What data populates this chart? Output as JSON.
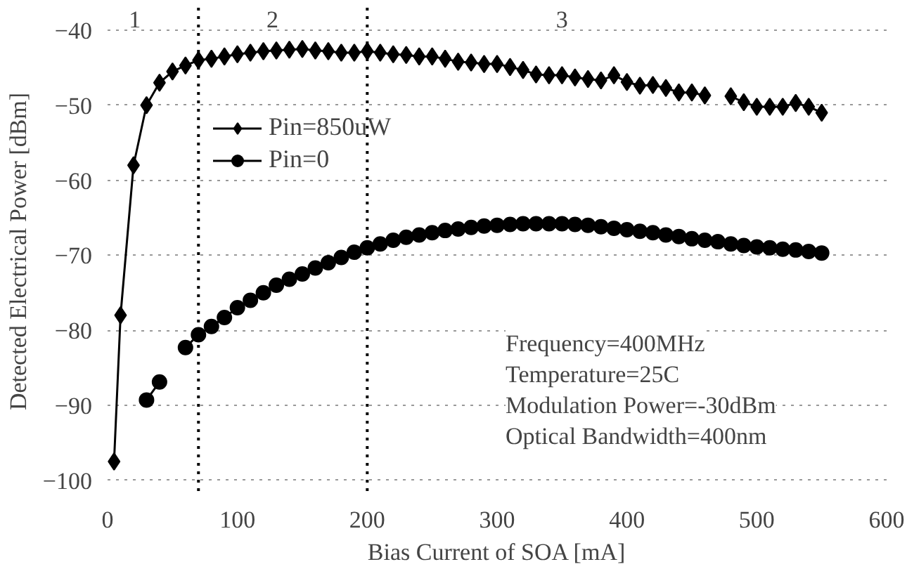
{
  "chart_data": {
    "type": "line",
    "xlabel": "Bias Current of SOA [mA]",
    "ylabel": "Detected Electrical Power [dBm]",
    "x": [
      5,
      10,
      20,
      30,
      40,
      50,
      60,
      70,
      80,
      90,
      100,
      110,
      120,
      130,
      140,
      150,
      160,
      170,
      180,
      190,
      200,
      210,
      220,
      230,
      240,
      250,
      260,
      270,
      280,
      290,
      300,
      310,
      320,
      330,
      340,
      350,
      360,
      370,
      380,
      390,
      400,
      410,
      420,
      430,
      440,
      450,
      460,
      470,
      480,
      490,
      500,
      510,
      520,
      530,
      540,
      550
    ],
    "series": [
      {
        "name": "Pin=850uW",
        "color": "#000000",
        "marker": "diamond",
        "values": [
          -97.5,
          -78,
          -58,
          -50,
          -47,
          -45.5,
          -44.7,
          -44,
          -43.8,
          -43.5,
          -43.2,
          -43,
          -42.8,
          -42.7,
          -42.6,
          -42.5,
          -42.7,
          -42.8,
          -43,
          -43,
          -42.8,
          -43,
          -43.2,
          -43.3,
          -43.5,
          -43.5,
          -43.8,
          -44.2,
          -44.3,
          -44.5,
          -44.5,
          -44.9,
          -45.3,
          -45.9,
          -46,
          -46,
          -46.3,
          -46.5,
          -46.7,
          -46,
          -46.9,
          -47.4,
          -47.3,
          -47.7,
          -48.3,
          -48.3,
          -48.7,
          null,
          -48.8,
          -49.6,
          -50.2,
          -50.2,
          -50.2,
          -49.7,
          -50.2,
          -51
        ]
      },
      {
        "name": "Pin=0",
        "color": "#000000",
        "marker": "circle",
        "values": [
          null,
          null,
          null,
          -89.3,
          -86.9,
          null,
          -82.3,
          -80.6,
          -79.5,
          -78.3,
          -77,
          -76,
          -75,
          -74,
          -73.2,
          -72.5,
          -71.7,
          -71,
          -70.3,
          -69.6,
          -69,
          -68.5,
          -68,
          -67.6,
          -67.3,
          -67,
          -66.7,
          -66.5,
          -66.3,
          -66.1,
          -66,
          -65.9,
          -65.8,
          -65.8,
          -65.8,
          -65.8,
          -65.9,
          -66,
          -66.2,
          -66.4,
          -66.6,
          -66.8,
          -67,
          -67.3,
          -67.5,
          -67.8,
          -68,
          -68.2,
          -68.5,
          -68.7,
          -68.9,
          -69,
          -69.2,
          -69.3,
          -69.5,
          -69.7
        ]
      }
    ],
    "xlim": [
      0,
      600
    ],
    "xticks": [
      0,
      100,
      200,
      300,
      400,
      500,
      600
    ],
    "ylim": [
      -102,
      -37
    ],
    "yticks": [
      -100,
      -90,
      -80,
      -70,
      -60,
      -50,
      -40
    ],
    "grid": "y",
    "legend": "top left",
    "line_style": "solid",
    "ref_lines": [
      {
        "axis": "x",
        "value": 70,
        "line_style": "dotted",
        "color": "#000000"
      },
      {
        "axis": "x",
        "value": 200,
        "line_style": "dotted",
        "color": "#000000"
      }
    ],
    "annotations": [
      "1",
      "2",
      "3",
      "Frequency=400MHz",
      "Temperature=25C",
      "Modulation Power=-30dBm",
      "Optical Bandwidth=400nm"
    ]
  }
}
